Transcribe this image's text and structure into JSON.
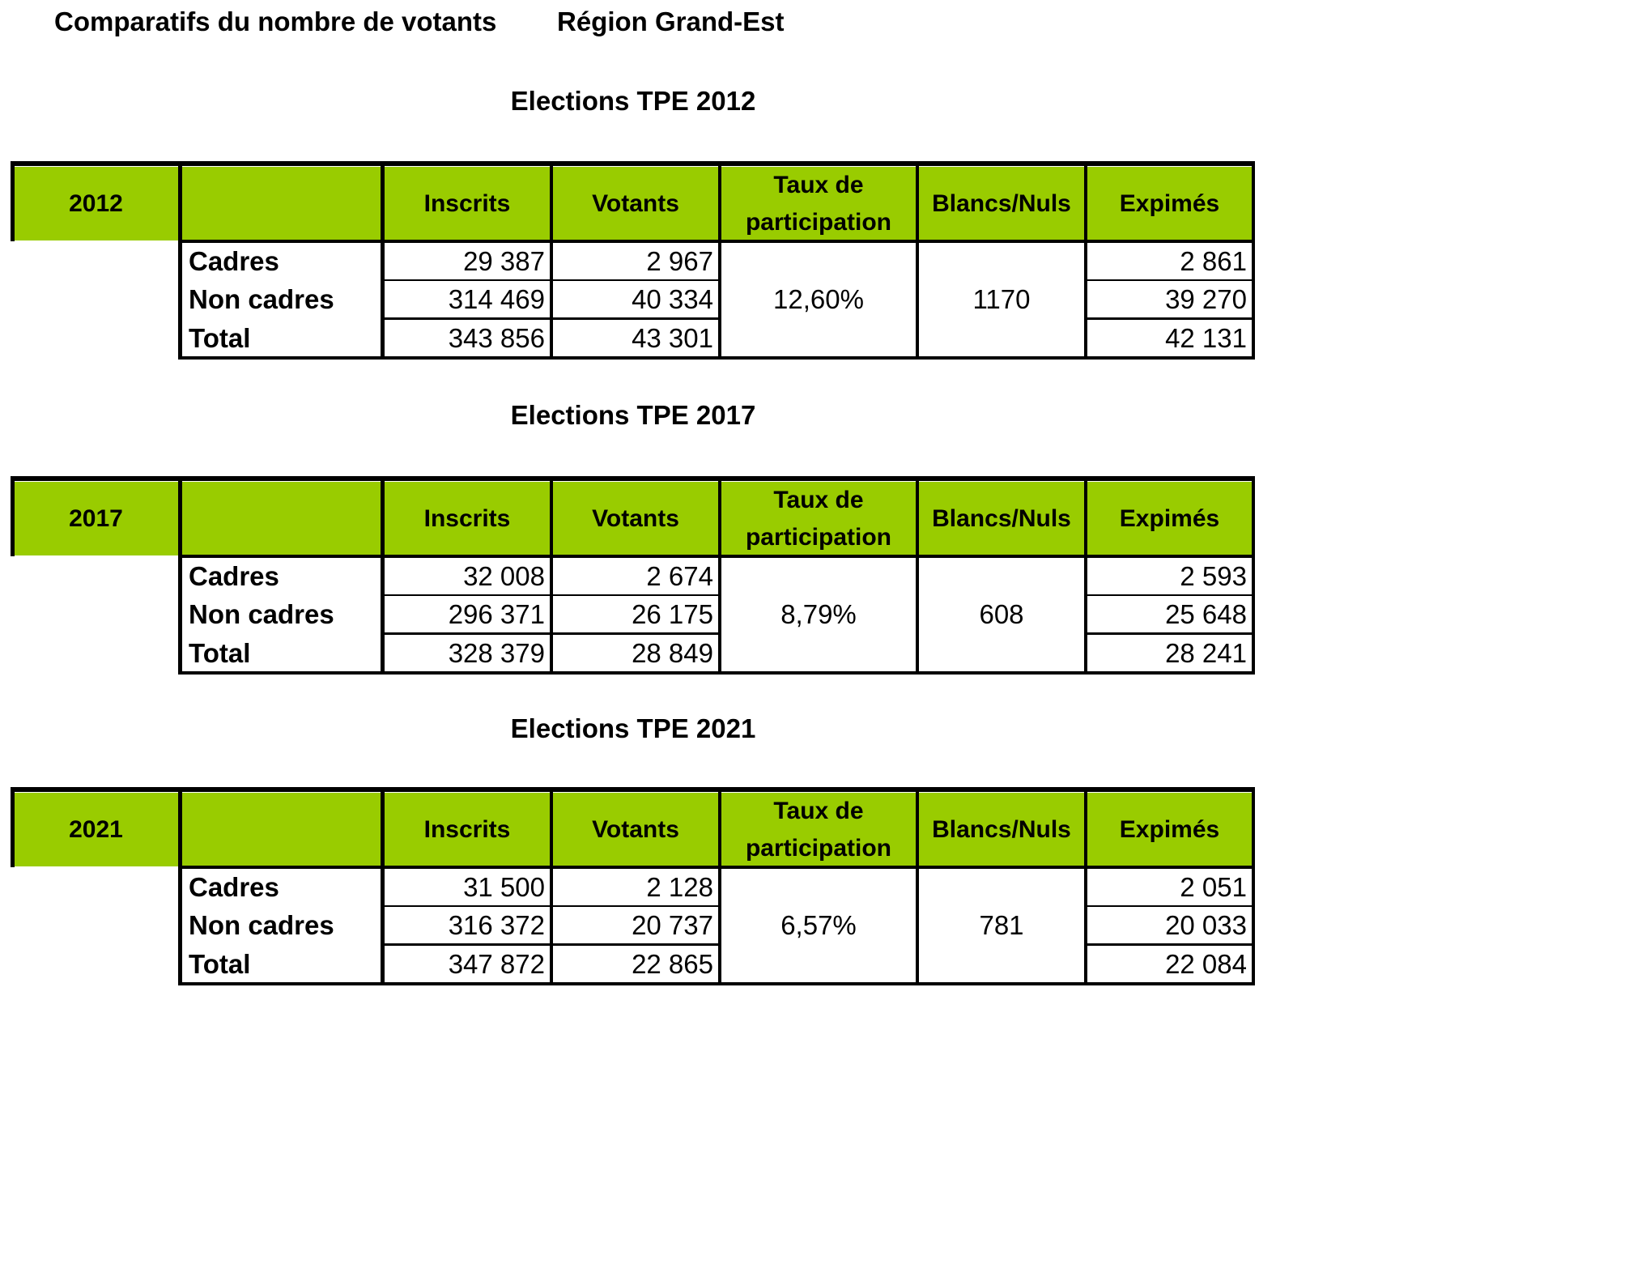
{
  "header": {
    "title": "Comparatifs du nombre de votants",
    "region": "Région Grand-Est"
  },
  "columns": {
    "inscrits": "Inscrits",
    "votants": "Votants",
    "taux": "Taux de participation",
    "blancs": "Blancs/Nuls",
    "exprimes": "Expimés"
  },
  "rows": {
    "cadres": "Cadres",
    "non_cadres": "Non cadres",
    "total": "Total"
  },
  "sections": [
    {
      "title": "Elections TPE 2012",
      "year": "2012",
      "taux": "12,60%",
      "blancs": "1170",
      "cadres": {
        "inscrits": "29 387",
        "votants": "2 967",
        "exprimes": "2 861"
      },
      "non_cadres": {
        "inscrits": "314 469",
        "votants": "40 334",
        "exprimes": "39 270"
      },
      "total": {
        "inscrits": "343 856",
        "votants": "43 301",
        "exprimes": "42 131"
      }
    },
    {
      "title": "Elections TPE 2017",
      "year": "2017",
      "taux": "8,79%",
      "blancs": "608",
      "cadres": {
        "inscrits": "32 008",
        "votants": "2 674",
        "exprimes": "2 593"
      },
      "non_cadres": {
        "inscrits": "296 371",
        "votants": "26 175",
        "exprimes": "25 648"
      },
      "total": {
        "inscrits": "328 379",
        "votants": "28 849",
        "exprimes": "28 241"
      }
    },
    {
      "title": "Elections TPE 2021",
      "year": "2021",
      "taux": "6,57%",
      "blancs": "781",
      "cadres": {
        "inscrits": "31 500",
        "votants": "2 128",
        "exprimes": "2 051"
      },
      "non_cadres": {
        "inscrits": "316 372",
        "votants": "20 737",
        "exprimes": "20 033"
      },
      "total": {
        "inscrits": "347 872",
        "votants": "22 865",
        "exprimes": "22 084"
      }
    }
  ]
}
